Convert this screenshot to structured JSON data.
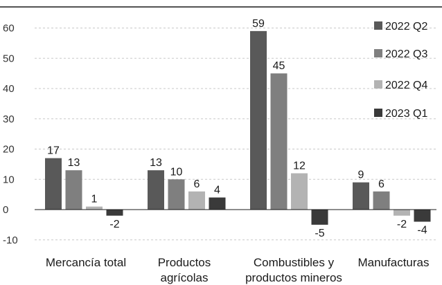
{
  "chart_data": {
    "type": "bar",
    "categories": [
      [
        "Mercancía total"
      ],
      [
        "Productos",
        "agrícolas"
      ],
      [
        "Combustibles y",
        "productos mineros"
      ],
      [
        "Manufacturas"
      ]
    ],
    "series": [
      {
        "name": "2022 Q2",
        "color": "#595959",
        "values": [
          17,
          13,
          59,
          9
        ]
      },
      {
        "name": "2022 Q3",
        "color": "#7f7f7f",
        "values": [
          13,
          10,
          45,
          6
        ]
      },
      {
        "name": "2022 Q4",
        "color": "#b3b3b3",
        "values": [
          1,
          6,
          12,
          -2
        ]
      },
      {
        "name": "2023 Q1",
        "color": "#3a3a3a",
        "values": [
          -2,
          4,
          -5,
          -4
        ]
      }
    ],
    "ylim": [
      -10,
      65
    ],
    "yticks": [
      -10,
      0,
      10,
      20,
      30,
      40,
      50,
      60
    ],
    "grid": true,
    "legend": "top-right",
    "title": "",
    "xlabel": "",
    "ylabel": ""
  }
}
